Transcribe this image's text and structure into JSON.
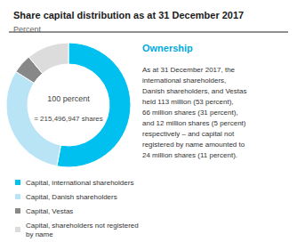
{
  "chart_data": {
    "type": "pie",
    "title": "Share capital distribution as at 31 December 2017",
    "subtitle": "Percent",
    "categories": [
      "Capital, international shareholders",
      "Capital, Danish shareholders",
      "Capital, Vestas",
      "Capital, shareholders not registered\nby name"
    ],
    "values": [
      53,
      31,
      5,
      11
    ],
    "colors": [
      "#00C0F0",
      "#B8E4F5",
      "#888888",
      "#DCDCDC"
    ],
    "center_text": [
      "100 percent",
      "= 215,496,947 shares"
    ],
    "text_panel": {
      "title": "Ownership",
      "lines": [
        "As at 31 December 2017, the",
        "international shareholders,",
        "Danish shareholders, and Vestas",
        "held 113 million (53 percent),",
        "66 million shares (31 percent),",
        "and 12 million shares (5 percent)",
        "respectively – and capital not",
        "registered by name amounted to",
        "24 million shares (11 percent)."
      ]
    },
    "legend": "lower left"
  }
}
